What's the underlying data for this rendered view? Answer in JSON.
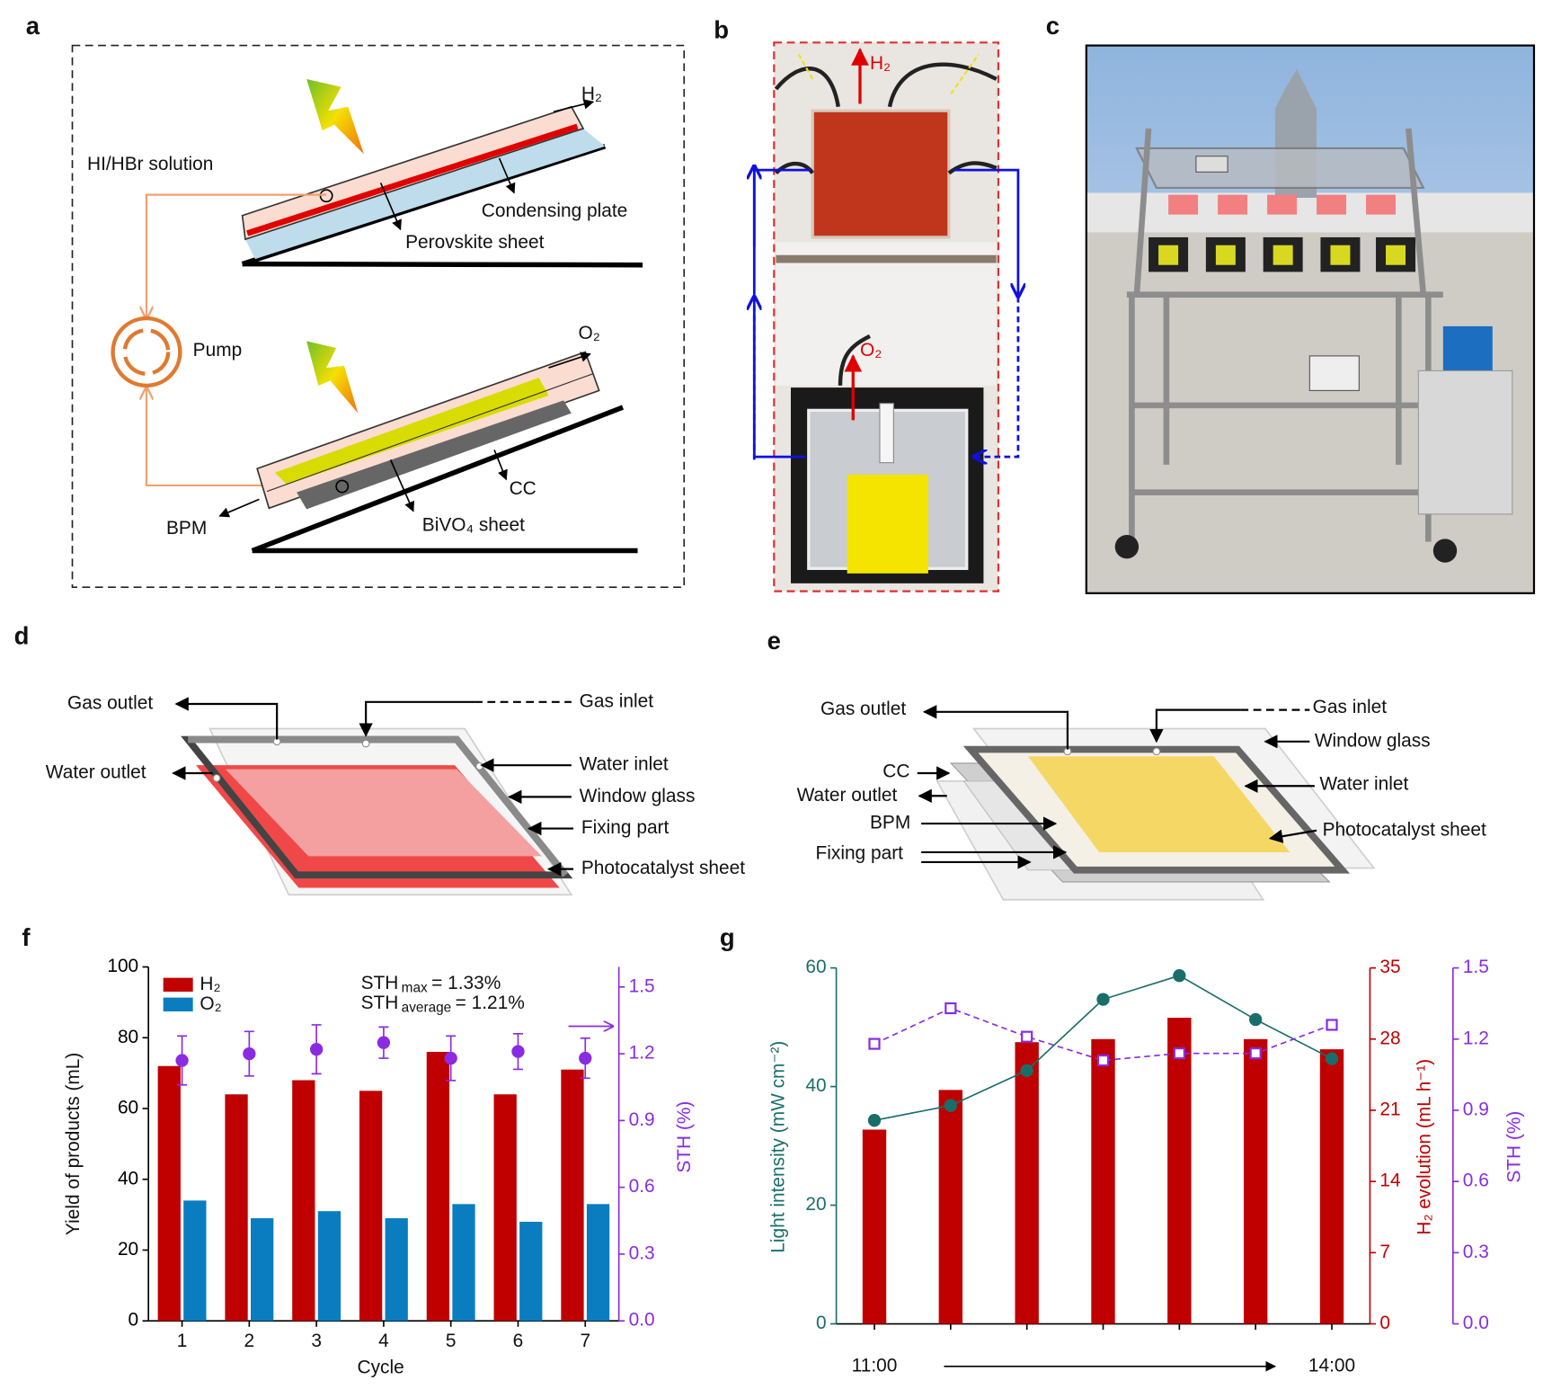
{
  "panel_labels": [
    "a",
    "b",
    "c",
    "d",
    "e",
    "f",
    "g"
  ],
  "panel_a": {
    "labels": [
      "H₂",
      "HI/HBr solution",
      "Condensing plate",
      "Perovskite sheet",
      "Pump",
      "O₂",
      "CC",
      "BPM",
      "BiVO₄ sheet"
    ]
  },
  "panel_b": {
    "labels": [
      "H₂",
      "O₂"
    ]
  },
  "panel_d": {
    "labels": [
      "Gas outlet",
      "Gas inlet",
      "Water outlet",
      "Water inlet",
      "Window glass",
      "Fixing part",
      "Photocatalyst sheet"
    ]
  },
  "panel_e": {
    "labels": [
      "Gas outlet",
      "Gas inlet",
      "Window glass",
      "CC",
      "Water outlet",
      "Water inlet",
      "BPM",
      "Fixing part",
      "Photocatalyst sheet"
    ]
  },
  "chart_data": [
    {
      "type": "bar",
      "x_label": "Cycle",
      "y_label": "Yield of products (mL)",
      "y2_label": "STH (%)",
      "categories": [
        "1",
        "2",
        "3",
        "4",
        "5",
        "6",
        "7"
      ],
      "ylim": [
        0,
        100
      ],
      "yticks": [
        0,
        20,
        40,
        60,
        80,
        100
      ],
      "y_color": "#000000",
      "y2lim": [
        0,
        1.59
      ],
      "y2ticks": [
        {
          "value": 0,
          "label": "0.0"
        },
        0.3,
        0.6,
        0.9,
        1.2,
        1.5
      ],
      "y2_color": "#8a2be2",
      "legend": "upper left",
      "annotations": [
        {
          "text": "STH",
          "sub": "max",
          "rest": "= 1.33%"
        },
        {
          "text": "STH",
          "sub": "average",
          "rest": "= 1.21%"
        }
      ],
      "series": [
        {
          "name": "H₂",
          "type": "bar",
          "color": "#c00000",
          "axis": "y",
          "values": [
            72,
            64,
            68,
            65,
            76,
            64,
            71
          ]
        },
        {
          "name": "O₂",
          "type": "bar",
          "color": "#0a7dc0",
          "axis": "y",
          "values": [
            34,
            29,
            31,
            29,
            33,
            28,
            33
          ]
        },
        {
          "type": "scatter",
          "marker": "circle",
          "color": "#8a2be2",
          "axis": "y2",
          "values": [
            1.17,
            1.2,
            1.22,
            1.25,
            1.18,
            1.21,
            1.18
          ],
          "errors": [
            0.11,
            0.1,
            0.11,
            0.07,
            0.1,
            0.08,
            0.09
          ]
        }
      ]
    },
    {
      "type": "bar",
      "y_label": "Light intensity (mW cm⁻²)",
      "y2_label": "H₂ evolution (mL h⁻¹)",
      "y3_label": "STH (%)",
      "categories": [
        "11:00",
        null,
        null,
        null,
        null,
        null,
        "14:00"
      ],
      "ylim": [
        0,
        60
      ],
      "yticks": [
        0,
        20,
        40,
        60
      ],
      "y_color": "#1a6e6a",
      "y2lim": [
        0,
        35
      ],
      "y2ticks": [
        0,
        7,
        14,
        21,
        28,
        35
      ],
      "y2_color": "#c00000",
      "y3lim": [
        0,
        1.5
      ],
      "y3ticks": [
        {
          "value": 0,
          "label": "0.0"
        },
        0.3,
        0.6,
        0.9,
        1.2,
        1.5
      ],
      "y3_color": "#8a2be2",
      "series": [
        {
          "type": "bar",
          "color": "#c00000",
          "axis": "y2",
          "values": [
            19.1,
            23.0,
            27.7,
            28.0,
            30.1,
            28.0,
            27.0
          ]
        },
        {
          "type": "line",
          "marker": "circle",
          "color": "#1a6e6a",
          "axis": "y",
          "values": [
            34.3,
            36.8,
            42.7,
            54.7,
            58.7,
            51.3,
            44.7
          ]
        },
        {
          "type": "line",
          "marker": "square",
          "line_style": "dashed",
          "color": "#8a2be2",
          "axis": "y3",
          "values": [
            1.18,
            1.33,
            1.21,
            1.11,
            1.14,
            1.14,
            1.26
          ]
        }
      ]
    }
  ]
}
